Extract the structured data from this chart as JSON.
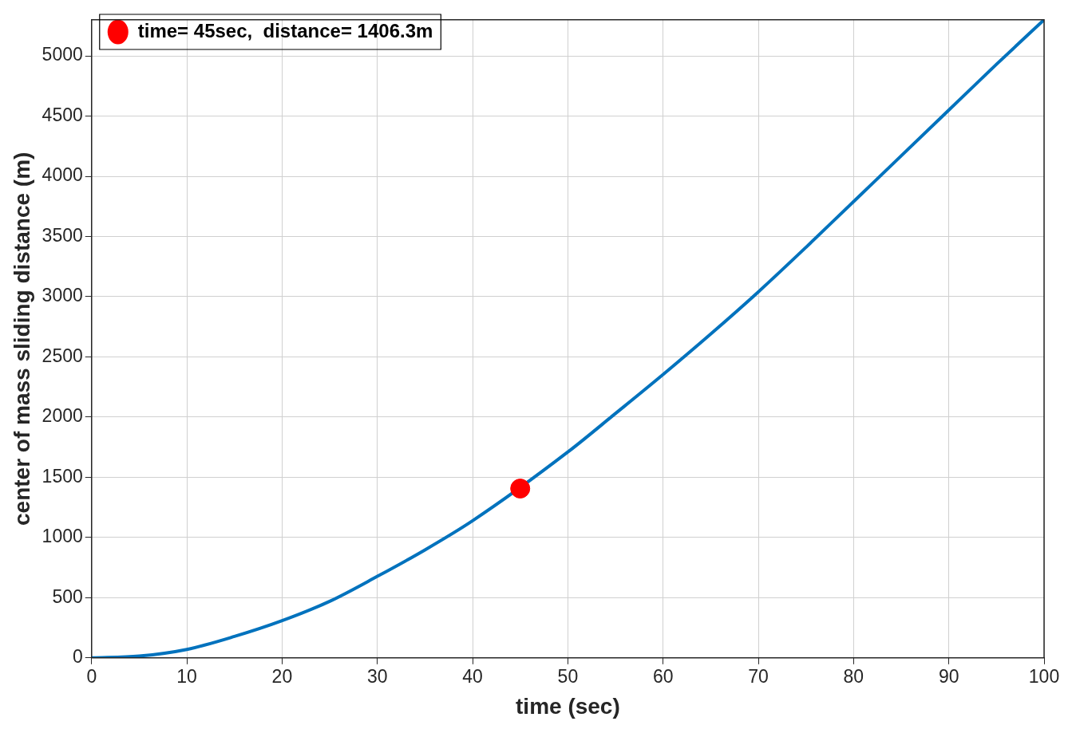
{
  "chart_data": {
    "type": "line",
    "xlabel": "time (sec)",
    "ylabel": "center of mass sliding distance (m)",
    "xlim": [
      0,
      100
    ],
    "xticks": [
      0,
      10,
      20,
      30,
      40,
      50,
      60,
      70,
      80,
      90,
      100
    ],
    "ylim": [
      0,
      5300
    ],
    "yticks": [
      0,
      500,
      1000,
      1500,
      2000,
      2500,
      3000,
      3500,
      4000,
      4500,
      5000
    ],
    "grid": true,
    "legend": "top left",
    "series": [
      {
        "color": "#0072bd",
        "marker": "none",
        "line_style": "solid",
        "x": [
          0,
          5,
          10,
          15,
          20,
          25,
          30,
          35,
          40,
          50,
          55,
          60,
          65,
          70,
          75,
          80,
          85,
          90,
          95,
          100
        ],
        "values": [
          0,
          15,
          70,
          178,
          309,
          470,
          677,
          897,
          1139,
          1710,
          2030,
          2354,
          2690,
          3040,
          3410,
          3790,
          4170,
          4550,
          4930,
          5300
        ]
      },
      {
        "type": "scatter",
        "name": "time= 45sec,  distance= 1406.3m",
        "color": "#ff0000",
        "marker": "circle",
        "x": [
          45
        ],
        "values": [
          1406.3
        ]
      }
    ]
  }
}
